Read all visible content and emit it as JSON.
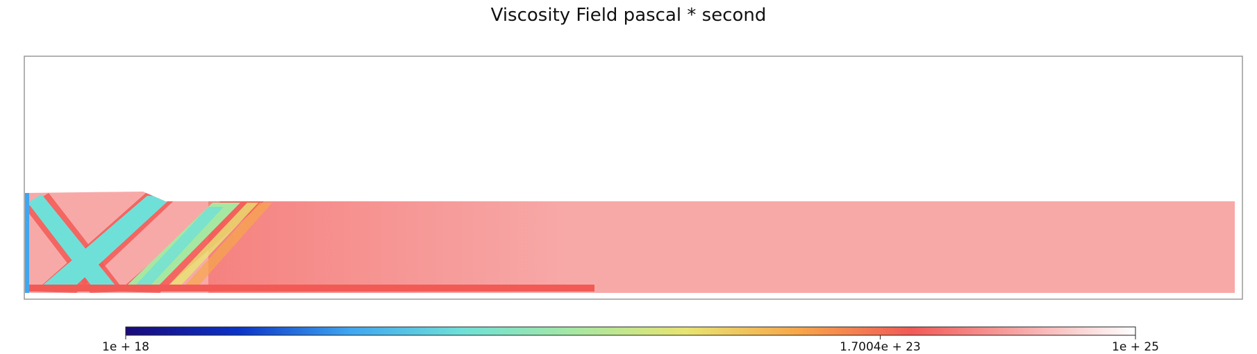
{
  "chart_data": {
    "type": "heatmap",
    "title": "Viscosity Field pascal * second",
    "colorbar": {
      "scale": "log",
      "min": 1e+18,
      "max": 1e+25,
      "ticks": [
        {
          "value": 1e+18,
          "label": "1e + 18"
        },
        {
          "value": 1.7004e+23,
          "label": "1.7004e + 23"
        },
        {
          "value": 1e+25,
          "label": "1e + 25"
        }
      ],
      "colormap": [
        "#1a0a7a",
        "#0b33c8",
        "#3fa6f0",
        "#6fe0d8",
        "#a6e8a2",
        "#e8e472",
        "#f7a64a",
        "#f25a56",
        "#f7a9a8",
        "#ffffff"
      ]
    },
    "field": {
      "background_viscosity": 3e+23,
      "shear_band_viscosity": 3e+20,
      "note_colors": {
        "body": "#f7a9a8",
        "shear_band": "#6fe0d8",
        "band_edge": "#f25a56",
        "wall": "#3fa6f0"
      }
    }
  }
}
